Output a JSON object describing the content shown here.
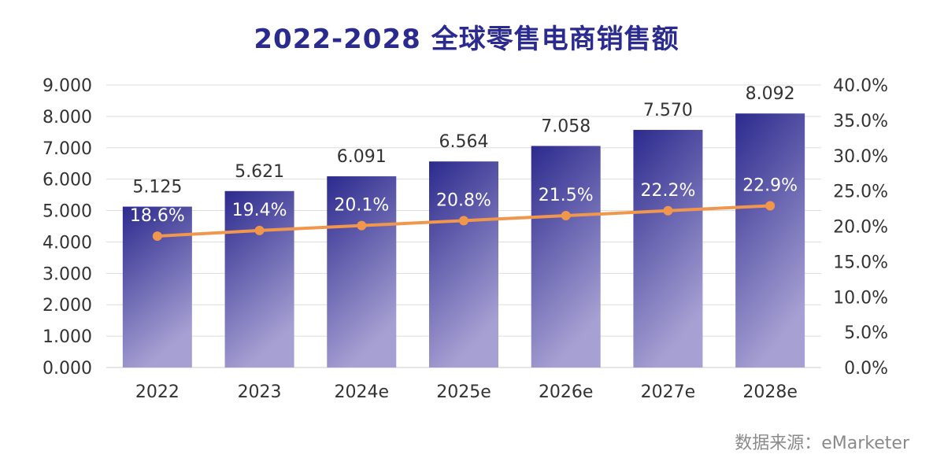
{
  "title": "2022-2028 全球零售电商销售额",
  "source": "数据来源：eMarketer",
  "colors": {
    "title": "#2b2a8f",
    "bar_top": "#2c2a8e",
    "bar_bottom": "#a7a1d3",
    "line": "#f0974d",
    "grid": "#dddddd"
  },
  "chart_data": {
    "type": "bar",
    "categories": [
      "2022",
      "2023",
      "2024e",
      "2025e",
      "2026e",
      "2027e",
      "2028e"
    ],
    "series": [
      {
        "type": "bar",
        "axis": "left",
        "values": [
          5.125,
          5.621,
          6.091,
          6.564,
          7.058,
          7.57,
          8.092
        ],
        "labels": [
          "5.125",
          "5.621",
          "6.091",
          "6.564",
          "7.058",
          "7.570",
          "8.092"
        ]
      },
      {
        "type": "line",
        "axis": "right",
        "values": [
          18.6,
          19.4,
          20.1,
          20.8,
          21.5,
          22.2,
          22.9
        ],
        "labels": [
          "18.6%",
          "19.4%",
          "20.1%",
          "20.8%",
          "21.5%",
          "22.2%",
          "22.9%"
        ]
      }
    ],
    "y_left": {
      "lim": [
        0,
        9
      ],
      "ticks": [
        "0.000",
        "1.000",
        "2.000",
        "3.000",
        "4.000",
        "5.000",
        "6.000",
        "7.000",
        "8.000",
        "9.000"
      ]
    },
    "y_right": {
      "lim": [
        0,
        40
      ],
      "ticks": [
        "0.0%",
        "5.0%",
        "10.0%",
        "15.0%",
        "20.0%",
        "25.0%",
        "30.0%",
        "35.0%",
        "40.0%"
      ]
    },
    "grid": true
  }
}
